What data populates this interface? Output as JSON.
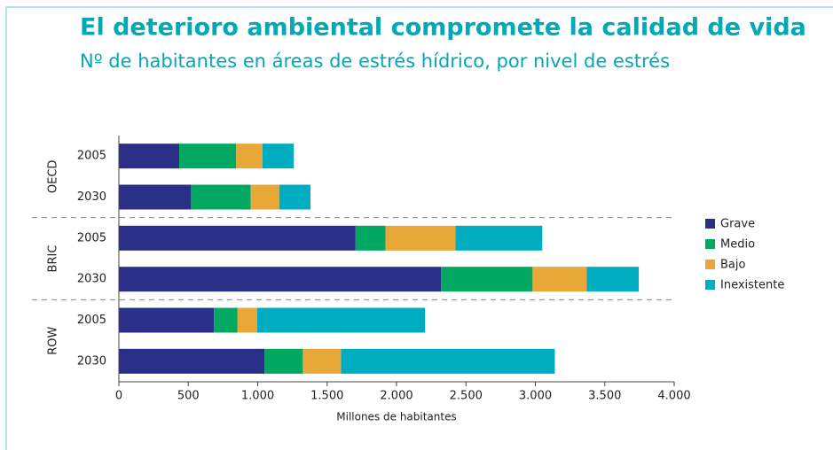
{
  "chart_data": {
    "type": "stacked-barh",
    "title": "El deterioro ambiental compromete la calidad de vida",
    "subtitle": "Nº de habitantes en áreas de estrés hídrico, por nivel de estrés",
    "x_label": "Millones de habitantes",
    "groups": [
      "OECD",
      "BRIC",
      "ROW"
    ],
    "categories": [
      "2005",
      "2030",
      "2005",
      "2030",
      "2005",
      "2030"
    ],
    "series": [
      {
        "name": "Grave",
        "color": "#2a3087",
        "values": [
          435,
          520,
          1705,
          2320,
          685,
          1050
        ]
      },
      {
        "name": "Medio",
        "color": "#00a862",
        "values": [
          410,
          430,
          215,
          660,
          170,
          275
        ]
      },
      {
        "name": "Bajo",
        "color": "#e8a838",
        "values": [
          190,
          205,
          505,
          390,
          140,
          275
        ]
      },
      {
        "name": "Inexistente",
        "color": "#00adc0",
        "values": [
          225,
          225,
          625,
          375,
          1210,
          1540
        ]
      }
    ],
    "xlim": [
      0,
      4000
    ],
    "xticks": [
      0,
      500,
      {
        "value": 1000,
        "label": "1.000"
      },
      {
        "value": 1500,
        "label": "1.500"
      },
      {
        "value": 2000,
        "label": "2.000"
      },
      {
        "value": 2500,
        "label": "2.500"
      },
      {
        "value": 3000,
        "label": "3.000"
      },
      {
        "value": 3500,
        "label": "3.500"
      },
      {
        "value": 4000,
        "label": "4.000"
      }
    ],
    "legend": "right"
  }
}
